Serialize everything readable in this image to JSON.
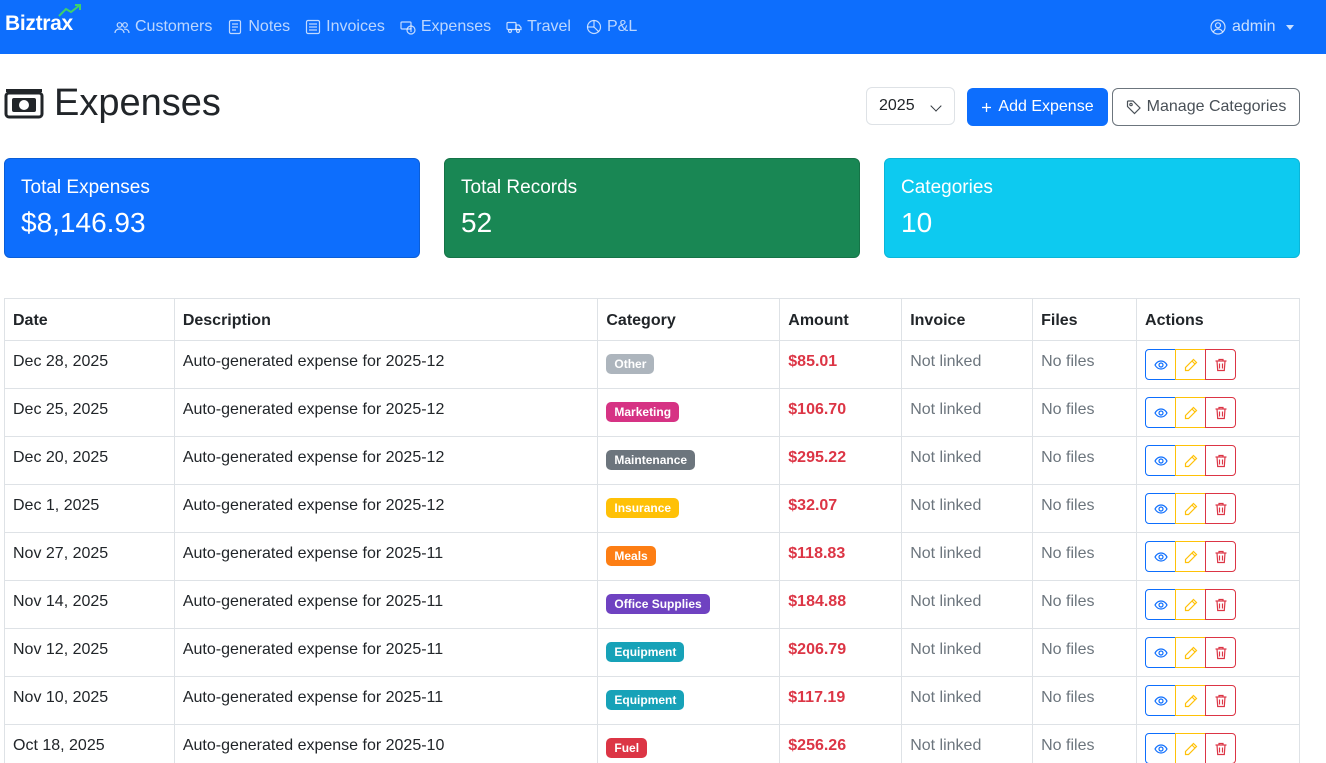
{
  "navbar": {
    "brand": "Biztrax",
    "items": [
      {
        "label": "Customers",
        "icon": "people-icon"
      },
      {
        "label": "Notes",
        "icon": "notes-icon"
      },
      {
        "label": "Invoices",
        "icon": "invoice-icon"
      },
      {
        "label": "Expenses",
        "icon": "expense-icon"
      },
      {
        "label": "Travel",
        "icon": "truck-icon"
      },
      {
        "label": "P&L",
        "icon": "pie-chart-icon"
      }
    ],
    "user": "admin"
  },
  "header": {
    "title": "Expenses",
    "year": "2025",
    "add_label": "Add Expense",
    "manage_label": "Manage Categories"
  },
  "stats": {
    "total_expenses_label": "Total Expenses",
    "total_expenses_value": "$8,146.93",
    "total_records_label": "Total Records",
    "total_records_value": "52",
    "categories_label": "Categories",
    "categories_value": "10"
  },
  "table": {
    "headers": [
      "Date",
      "Description",
      "Category",
      "Amount",
      "Invoice",
      "Files",
      "Actions"
    ],
    "rows": [
      {
        "date": "Dec 28, 2025",
        "description": "Auto-generated expense for 2025-12",
        "category": "Other",
        "category_color": "#adb5bd",
        "amount": "$85.01",
        "invoice": "Not linked",
        "files": "No files"
      },
      {
        "date": "Dec 25, 2025",
        "description": "Auto-generated expense for 2025-12",
        "category": "Marketing",
        "category_color": "#d63384",
        "amount": "$106.70",
        "invoice": "Not linked",
        "files": "No files"
      },
      {
        "date": "Dec 20, 2025",
        "description": "Auto-generated expense for 2025-12",
        "category": "Maintenance",
        "category_color": "#6c757d",
        "amount": "$295.22",
        "invoice": "Not linked",
        "files": "No files"
      },
      {
        "date": "Dec 1, 2025",
        "description": "Auto-generated expense for 2025-12",
        "category": "Insurance",
        "category_color": "#ffc107",
        "amount": "$32.07",
        "invoice": "Not linked",
        "files": "No files"
      },
      {
        "date": "Nov 27, 2025",
        "description": "Auto-generated expense for 2025-11",
        "category": "Meals",
        "category_color": "#fd7e14",
        "amount": "$118.83",
        "invoice": "Not linked",
        "files": "No files"
      },
      {
        "date": "Nov 14, 2025",
        "description": "Auto-generated expense for 2025-11",
        "category": "Office Supplies",
        "category_color": "#6f42c1",
        "amount": "$184.88",
        "invoice": "Not linked",
        "files": "No files"
      },
      {
        "date": "Nov 12, 2025",
        "description": "Auto-generated expense for 2025-11",
        "category": "Equipment",
        "category_color": "#17a2b8",
        "amount": "$206.79",
        "invoice": "Not linked",
        "files": "No files"
      },
      {
        "date": "Nov 10, 2025",
        "description": "Auto-generated expense for 2025-11",
        "category": "Equipment",
        "category_color": "#17a2b8",
        "amount": "$117.19",
        "invoice": "Not linked",
        "files": "No files"
      },
      {
        "date": "Oct 18, 2025",
        "description": "Auto-generated expense for 2025-10",
        "category": "Fuel",
        "category_color": "#dc3545",
        "amount": "$256.26",
        "invoice": "Not linked",
        "files": "No files"
      }
    ]
  }
}
